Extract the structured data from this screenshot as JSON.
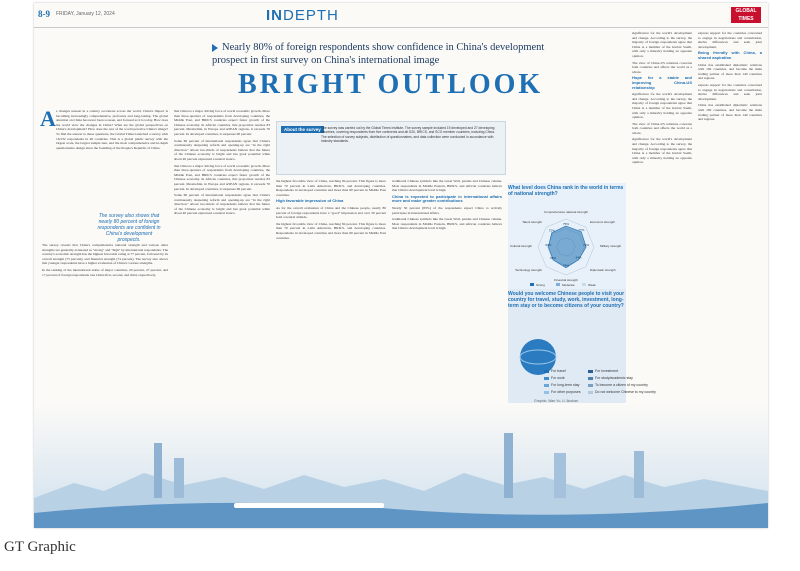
{
  "header": {
    "page_numbers": "8-9",
    "date": "FRIDAY, January 12, 2024",
    "section_in": "IN",
    "section_depth": "DEPTH",
    "logo_line1": "GLOBAL",
    "logo_line2": "TIMES"
  },
  "subhead": "Nearly 80% of foreign respondents show confidence in China's development prospect in first survey on China's international image",
  "title": "BRIGHT OUTLOOK",
  "dropcap": "A",
  "col1": [
    "s changes unseen in a century accelerate across the world, China's impact is becoming increasingly comprehensive, profound, and long-lasting. The global attention on China has never been so keen, and focused as it is today. How does the world view the changes in China? What are the global perspectives on China's development? How does the rest of the world perceive China's image? To find the answer to these questions, the Global Times launched a survey with 16,532 respondents in 46 countries. This is a global public survey with the largest scale, the largest sample size, and the most comprehensive and in-depth questionnaire design since the founding of the People's Republic of China.",
    "The survey reveals that China's comprehensive national strength and various other strengths are generally evaluated as \"strong\" and \"high\" by international respondents. The country's economic strength has the highest favorable rating at 77 percent, followed by its overall strength (75 percent), and financial strength (74 percent). The survey also shows that younger respondents have a higher evaluation of China's various strengths.",
    "In the ranking of the international status of major countries, 20 percent, 27 percent, and 17 percent of foreign respondents rate China first, second, and third, respectively."
  ],
  "pull_quote": "The survey also shows that nearly 80 percent of foreign respondents are confident in China's development prospects.",
  "col2": [
    "that China is a major driving force of world economic growth. More than three-quarters of respondents from developing countries, the Middle East, and BRICS countries expect faster growth of the Chinese economy. In African countries, this proportion reaches 83 percent. Meanwhile, in Europe and ASEAN regions, it exceeds 70 percent. In developed countries, it surpasses 60 percent.",
    "Some 60 percent of international respondents agree that China's continuously deepening reform and opening-up are \"in the right direction.\" About two-thirds of respondents believe that the future of the Chinese economy is bright and has great potential while about 40 percent expressed a neutral stance."
  ],
  "about": {
    "tag": "About the survey",
    "text": "The survey was carried out by the Global Times Institute. The survey sample included 19 developed and 27 developing countries, covering respondents from five continents and all G20, BRICS, and SCO member countries, including China. The selection of survey subjects, distribution of questionnaires, and data collection were conducted in accordance with industry standards."
  },
  "col3_heading": "High favorable impression of China",
  "col3": [
    "the highest favorable view of China, reaching 84 percent. This figure is more than 70 percent in Latin American, BRICS, and developing countries. Respondents in developed countries and more than 60 percent in Middle East countries.",
    "As for the overall evaluation of China and the Chinese people, nearly 80 percent of foreign respondents have a \"good\" impression and over 30 percent hold a neutral attitude."
  ],
  "col4_heading": "China is expected to participate in international affairs more and make greater contributions",
  "col4": [
    "traditional Chinese symbols like the Great Wall, pandas and Chinese cuisine. Most respondents in Middle Eastern, BRICS, and African countries believe that China's development level is high.",
    "Nearly 50 percent (83%) of the respondents expect China to actively participate in international affairs."
  ],
  "radar": {
    "question": "What level does China rank in the world in terms of national strength?",
    "axes": [
      "Comprehensive national strength",
      "Economic strength",
      "Military strength",
      "Diplomatic strength",
      "Financial strength",
      "Technology strength",
      "Cultural strength",
      "Talent strength"
    ],
    "axis_values": [
      "75%",
      "77%",
      "72%",
      "64%",
      "74%",
      "65%",
      "63%",
      "72%"
    ],
    "legend": [
      "Strong",
      "Moderate",
      "Weak"
    ]
  },
  "chart_data": {
    "type": "radar",
    "title": "What level does China rank in the world in terms of national strength?",
    "categories": [
      "Comprehensive national strength",
      "Economic strength",
      "Military strength",
      "Diplomatic strength",
      "Financial strength",
      "Technology strength",
      "Cultural strength",
      "Talent strength"
    ],
    "series": [
      {
        "name": "Strong",
        "values": [
          75,
          77,
          72,
          64,
          74,
          65,
          63,
          72
        ]
      }
    ]
  },
  "travel": {
    "question": "Would you welcome Chinese people to visit your country for travel, study, work, investment, long-term stay or to become citizens of your country?",
    "legend": [
      "For travel",
      "For work",
      "For long-term stay",
      "For other purposes",
      "For investment",
      "For study/academic stay",
      "To become a citizen of my country",
      "Do not welcome Chinese to my country"
    ]
  },
  "credit": "Graphic: Wan Yu, Li Jiushan",
  "col5_heading": "Hope for a stable and improving China-US relationship",
  "col6_heading": "Being friendly with China, a shared aspiration",
  "col5": [
    "significance for the world's development and change. According to the survey, the majority of foreign respondents agree that China is a member of the Global South, with only a minority holding an opposite opinion.",
    "The view of China-US relations concerns both countries and affects the world as a whole."
  ],
  "col6": [
    "express support for the countries concerned to engage in negotiations and consultation, shelve differences and seek joint development.",
    "China has established diplomatic relations with 182 countries, and become the main trading partner of more than 140 countries and regions."
  ],
  "watermark": "GT Graphic"
}
